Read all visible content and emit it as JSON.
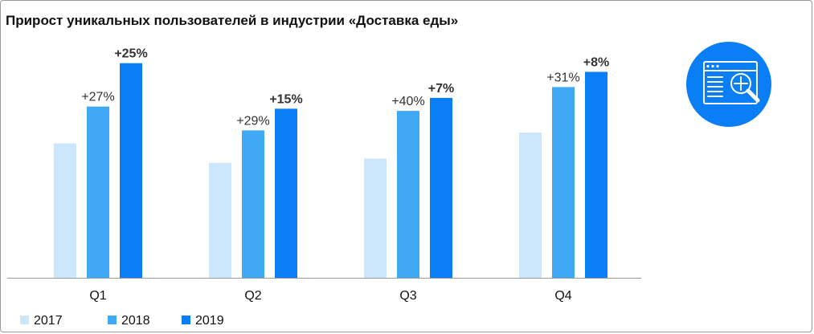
{
  "chart_data": {
    "type": "bar",
    "title": "Прирост уникальных пользователей в индустрии «Доставка еды»",
    "xlabel": "",
    "ylabel": "",
    "grid": false,
    "legend_position": "bottom-left",
    "categories": [
      "Q1",
      "Q2",
      "Q3",
      "Q4"
    ],
    "series": [
      {
        "name": "2017",
        "color": "#cce6fb",
        "values": [
          62,
          53,
          55,
          67
        ]
      },
      {
        "name": "2018",
        "color": "#3fa9f5",
        "values": [
          79,
          68,
          77,
          88
        ]
      },
      {
        "name": "2019",
        "color": "#0a7ff5",
        "values": [
          99,
          78,
          83,
          95
        ]
      }
    ],
    "data_labels": {
      "2018": [
        "+27%",
        "+29%",
        "+40%",
        "+31%"
      ],
      "2019": [
        "+25%",
        "+15%",
        "+7%",
        "+8%"
      ]
    },
    "ylim": [
      0,
      100
    ]
  },
  "icon": {
    "name": "analytics-search-icon",
    "color": "#0a7ff5"
  }
}
